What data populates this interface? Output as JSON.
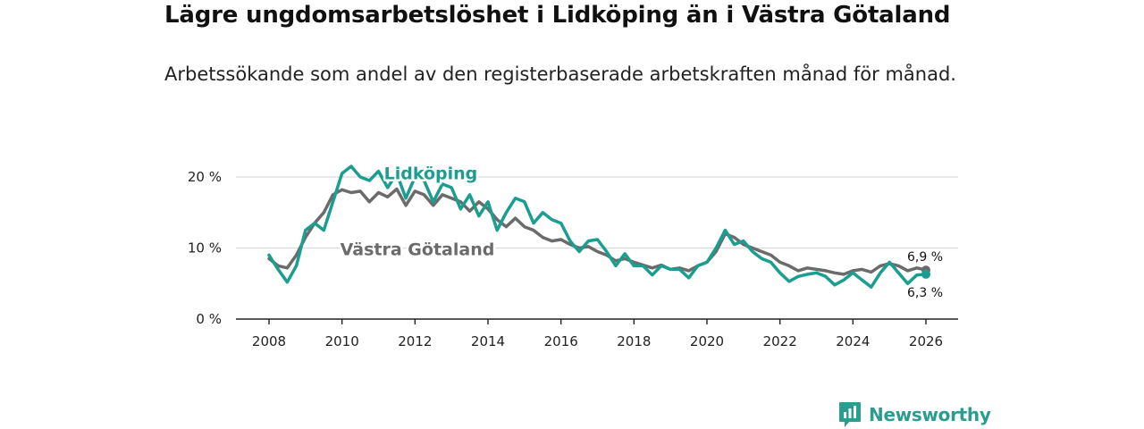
{
  "title": "Lägre ungdomsarbetslöshet i Lidköping än i Västra Götaland",
  "subtitle": "Arbetssökande som andel av den registerbaserade arbetskraften månad för månad.",
  "brand": {
    "name": "Newsworthy",
    "icon": "newsworthy-logo-icon"
  },
  "colors": {
    "lidkoping": "#1a9e90",
    "vgr": "#6b6b6b",
    "grid": "#d9d9d9",
    "axis": "#222222",
    "brand": "#2a9d8f"
  },
  "chart_data": {
    "type": "line",
    "title": "Lägre ungdomsarbetslöshet i Lidköping än i Västra Götaland",
    "xlabel": "",
    "ylabel": "",
    "xlim": [
      2007.4,
      2027.0
    ],
    "ylim": [
      0,
      20
    ],
    "x_ticks": [
      2008,
      2010,
      2012,
      2014,
      2016,
      2018,
      2020,
      2022,
      2024,
      2026
    ],
    "x_tick_labels": [
      "2008",
      "2010",
      "2012",
      "2014",
      "2016",
      "2018",
      "2020",
      "2022",
      "2024",
      "2026"
    ],
    "y_ticks": [
      0,
      10,
      20
    ],
    "y_tick_labels": [
      "0 %",
      "10 %",
      "20 %"
    ],
    "grid": true,
    "series": [
      {
        "name": "Västra Götaland",
        "color": "#6b6b6b",
        "label_at": [
          2009.95,
          9
        ],
        "end_label": "6,9 %",
        "points": [
          [
            2008.0,
            8.5
          ],
          [
            2008.25,
            7.5
          ],
          [
            2008.5,
            7.2
          ],
          [
            2008.75,
            9.0
          ],
          [
            2009.0,
            11.5
          ],
          [
            2009.25,
            13.5
          ],
          [
            2009.5,
            15.0
          ],
          [
            2009.75,
            17.5
          ],
          [
            2010.0,
            18.2
          ],
          [
            2010.25,
            17.8
          ],
          [
            2010.5,
            18.0
          ],
          [
            2010.75,
            16.5
          ],
          [
            2011.0,
            17.8
          ],
          [
            2011.25,
            17.2
          ],
          [
            2011.5,
            18.3
          ],
          [
            2011.75,
            16.0
          ],
          [
            2012.0,
            18.0
          ],
          [
            2012.25,
            17.5
          ],
          [
            2012.5,
            16.0
          ],
          [
            2012.75,
            17.5
          ],
          [
            2013.0,
            17.0
          ],
          [
            2013.25,
            16.5
          ],
          [
            2013.5,
            15.2
          ],
          [
            2013.75,
            16.5
          ],
          [
            2014.0,
            15.5
          ],
          [
            2014.25,
            14.0
          ],
          [
            2014.5,
            13.0
          ],
          [
            2014.75,
            14.2
          ],
          [
            2015.0,
            13.0
          ],
          [
            2015.25,
            12.5
          ],
          [
            2015.5,
            11.5
          ],
          [
            2015.75,
            11.0
          ],
          [
            2016.0,
            11.2
          ],
          [
            2016.25,
            10.5
          ],
          [
            2016.5,
            10.0
          ],
          [
            2016.75,
            10.2
          ],
          [
            2017.0,
            9.5
          ],
          [
            2017.25,
            9.0
          ],
          [
            2017.5,
            8.2
          ],
          [
            2017.75,
            8.5
          ],
          [
            2018.0,
            8.0
          ],
          [
            2018.25,
            7.6
          ],
          [
            2018.5,
            7.2
          ],
          [
            2018.75,
            7.6
          ],
          [
            2019.0,
            7.0
          ],
          [
            2019.25,
            7.2
          ],
          [
            2019.5,
            6.8
          ],
          [
            2019.75,
            7.5
          ],
          [
            2020.0,
            8.0
          ],
          [
            2020.25,
            9.5
          ],
          [
            2020.5,
            12.0
          ],
          [
            2020.75,
            11.5
          ],
          [
            2021.0,
            10.5
          ],
          [
            2021.25,
            10.0
          ],
          [
            2021.5,
            9.5
          ],
          [
            2021.75,
            9.0
          ],
          [
            2022.0,
            8.0
          ],
          [
            2022.25,
            7.5
          ],
          [
            2022.5,
            6.8
          ],
          [
            2022.75,
            7.2
          ],
          [
            2023.0,
            7.0
          ],
          [
            2023.25,
            6.8
          ],
          [
            2023.5,
            6.5
          ],
          [
            2023.75,
            6.3
          ],
          [
            2024.0,
            6.8
          ],
          [
            2024.25,
            7.0
          ],
          [
            2024.5,
            6.6
          ],
          [
            2024.75,
            7.5
          ],
          [
            2025.0,
            7.8
          ],
          [
            2025.25,
            7.5
          ],
          [
            2025.5,
            6.8
          ],
          [
            2025.75,
            7.2
          ],
          [
            2026.0,
            6.9
          ]
        ]
      },
      {
        "name": "Lidköping",
        "color": "#1a9e90",
        "label_at": [
          2011.15,
          19.7
        ],
        "end_label": "6,3 %",
        "points": [
          [
            2008.0,
            9.0
          ],
          [
            2008.25,
            7.0
          ],
          [
            2008.5,
            5.2
          ],
          [
            2008.75,
            7.5
          ],
          [
            2009.0,
            12.5
          ],
          [
            2009.25,
            13.5
          ],
          [
            2009.5,
            12.5
          ],
          [
            2009.75,
            16.5
          ],
          [
            2010.0,
            20.5
          ],
          [
            2010.25,
            21.5
          ],
          [
            2010.5,
            20.0
          ],
          [
            2010.75,
            19.5
          ],
          [
            2011.0,
            20.8
          ],
          [
            2011.25,
            18.5
          ],
          [
            2011.5,
            20.5
          ],
          [
            2011.75,
            17.0
          ],
          [
            2012.0,
            20.0
          ],
          [
            2012.25,
            19.5
          ],
          [
            2012.5,
            16.5
          ],
          [
            2012.75,
            19.0
          ],
          [
            2013.0,
            18.5
          ],
          [
            2013.25,
            15.5
          ],
          [
            2013.5,
            17.5
          ],
          [
            2013.75,
            14.5
          ],
          [
            2014.0,
            16.5
          ],
          [
            2014.25,
            12.5
          ],
          [
            2014.5,
            15.0
          ],
          [
            2014.75,
            17.0
          ],
          [
            2015.0,
            16.5
          ],
          [
            2015.25,
            13.5
          ],
          [
            2015.5,
            15.0
          ],
          [
            2015.75,
            14.0
          ],
          [
            2016.0,
            13.5
          ],
          [
            2016.25,
            11.0
          ],
          [
            2016.5,
            9.5
          ],
          [
            2016.75,
            11.0
          ],
          [
            2017.0,
            11.2
          ],
          [
            2017.25,
            9.5
          ],
          [
            2017.5,
            7.5
          ],
          [
            2017.75,
            9.2
          ],
          [
            2018.0,
            7.5
          ],
          [
            2018.25,
            7.5
          ],
          [
            2018.5,
            6.2
          ],
          [
            2018.75,
            7.5
          ],
          [
            2019.0,
            7.0
          ],
          [
            2019.25,
            7.0
          ],
          [
            2019.5,
            5.8
          ],
          [
            2019.75,
            7.5
          ],
          [
            2020.0,
            8.0
          ],
          [
            2020.25,
            10.0
          ],
          [
            2020.5,
            12.5
          ],
          [
            2020.75,
            10.5
          ],
          [
            2021.0,
            11.0
          ],
          [
            2021.25,
            9.5
          ],
          [
            2021.5,
            8.5
          ],
          [
            2021.75,
            8.0
          ],
          [
            2022.0,
            6.5
          ],
          [
            2022.25,
            5.3
          ],
          [
            2022.5,
            6.0
          ],
          [
            2022.75,
            6.3
          ],
          [
            2023.0,
            6.5
          ],
          [
            2023.25,
            6.0
          ],
          [
            2023.5,
            4.8
          ],
          [
            2023.75,
            5.5
          ],
          [
            2024.0,
            6.5
          ],
          [
            2024.25,
            5.5
          ],
          [
            2024.5,
            4.5
          ],
          [
            2024.75,
            6.5
          ],
          [
            2025.0,
            8.0
          ],
          [
            2025.25,
            6.5
          ],
          [
            2025.5,
            5.0
          ],
          [
            2025.75,
            6.2
          ],
          [
            2026.0,
            6.3
          ]
        ]
      }
    ]
  }
}
